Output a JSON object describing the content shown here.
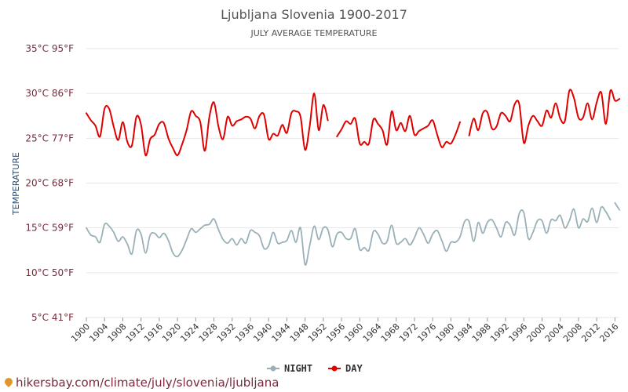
{
  "source": "hikersbay.com/climate/july/slovenia/ljubljana",
  "chart_data": {
    "type": "line",
    "title": "Ljubljana Slovenia 1900-2017",
    "subtitle": "JULY AVERAGE TEMPERATURE",
    "ylabel": "TEMPERATURE",
    "ylim": [
      5,
      35
    ],
    "xlim": [
      1900,
      2017
    ],
    "y_ticks": [
      {
        "value": 35,
        "label": "35°C 95°F"
      },
      {
        "value": 30,
        "label": "30°C 86°F"
      },
      {
        "value": 25,
        "label": "25°C 77°F"
      },
      {
        "value": 20,
        "label": "20°C 68°F"
      },
      {
        "value": 15,
        "label": "15°C 59°F"
      },
      {
        "value": 10,
        "label": "10°C 50°F"
      },
      {
        "value": 5,
        "label": "5°C 41°F"
      }
    ],
    "x_ticks": [
      1900,
      1904,
      1908,
      1912,
      1916,
      1920,
      1924,
      1928,
      1932,
      1936,
      1940,
      1944,
      1948,
      1952,
      1956,
      1960,
      1964,
      1968,
      1972,
      1976,
      1980,
      1984,
      1988,
      1992,
      1996,
      2000,
      2004,
      2008,
      2012,
      2016
    ],
    "grid": true,
    "legend_position": "bottom-center",
    "series": [
      {
        "name": "NIGHT",
        "color": "#9ab0b8",
        "segments": [
          [
            [
              1900,
              15.0
            ],
            [
              1901,
              14.2
            ],
            [
              1902,
              14.0
            ],
            [
              1903,
              13.4
            ],
            [
              1904,
              15.4
            ],
            [
              1905,
              15.2
            ],
            [
              1906,
              14.5
            ],
            [
              1907,
              13.5
            ],
            [
              1908,
              14.0
            ],
            [
              1909,
              13.2
            ],
            [
              1910,
              12.1
            ],
            [
              1911,
              14.7
            ],
            [
              1912,
              14.3
            ],
            [
              1913,
              12.2
            ],
            [
              1914,
              14.2
            ],
            [
              1915,
              14.4
            ],
            [
              1916,
              13.9
            ],
            [
              1917,
              14.4
            ],
            [
              1918,
              13.6
            ],
            [
              1919,
              12.2
            ],
            [
              1920,
              11.8
            ],
            [
              1921,
              12.5
            ],
            [
              1922,
              13.7
            ],
            [
              1923,
              14.9
            ],
            [
              1924,
              14.5
            ],
            [
              1925,
              14.9
            ],
            [
              1926,
              15.3
            ],
            [
              1927,
              15.4
            ],
            [
              1928,
              16.0
            ],
            [
              1929,
              14.8
            ],
            [
              1930,
              13.7
            ],
            [
              1931,
              13.3
            ],
            [
              1932,
              13.8
            ],
            [
              1933,
              13.1
            ],
            [
              1934,
              13.8
            ],
            [
              1935,
              13.3
            ],
            [
              1936,
              14.7
            ],
            [
              1937,
              14.5
            ],
            [
              1938,
              14.1
            ],
            [
              1939,
              12.7
            ],
            [
              1940,
              13.0
            ],
            [
              1941,
              14.5
            ],
            [
              1942,
              13.3
            ],
            [
              1943,
              13.4
            ],
            [
              1944,
              13.6
            ],
            [
              1945,
              14.7
            ],
            [
              1946,
              13.4
            ],
            [
              1947,
              15.0
            ],
            [
              1948,
              10.9
            ],
            [
              1949,
              13.0
            ],
            [
              1950,
              15.2
            ],
            [
              1951,
              13.7
            ],
            [
              1952,
              15.0
            ],
            [
              1953,
              14.8
            ],
            [
              1954,
              12.9
            ],
            [
              1955,
              14.3
            ],
            [
              1956,
              14.5
            ],
            [
              1957,
              13.8
            ],
            [
              1958,
              13.8
            ],
            [
              1959,
              14.9
            ],
            [
              1960,
              12.6
            ],
            [
              1961,
              12.8
            ],
            [
              1962,
              12.5
            ],
            [
              1963,
              14.6
            ],
            [
              1964,
              14.3
            ],
            [
              1965,
              13.3
            ],
            [
              1966,
              13.5
            ],
            [
              1967,
              15.3
            ],
            [
              1968,
              13.3
            ],
            [
              1969,
              13.4
            ],
            [
              1970,
              13.8
            ],
            [
              1971,
              13.1
            ],
            [
              1972,
              13.9
            ],
            [
              1973,
              15.0
            ],
            [
              1974,
              14.3
            ],
            [
              1975,
              13.3
            ],
            [
              1976,
              14.3
            ],
            [
              1977,
              14.7
            ],
            [
              1978,
              13.6
            ],
            [
              1979,
              12.4
            ],
            [
              1980,
              13.4
            ],
            [
              1981,
              13.4
            ],
            [
              1982,
              14.0
            ],
            [
              1983,
              15.7
            ],
            [
              1984,
              15.7
            ],
            [
              1985,
              13.5
            ],
            [
              1986,
              15.6
            ],
            [
              1987,
              14.4
            ],
            [
              1988,
              15.6
            ],
            [
              1989,
              15.9
            ],
            [
              1990,
              15.0
            ],
            [
              1991,
              14.0
            ],
            [
              1992,
              15.6
            ],
            [
              1993,
              15.3
            ],
            [
              1994,
              14.2
            ],
            [
              1995,
              16.6
            ],
            [
              1996,
              16.7
            ],
            [
              1997,
              13.8
            ],
            [
              1998,
              14.5
            ],
            [
              1999,
              15.8
            ],
            [
              2000,
              15.8
            ],
            [
              2001,
              14.4
            ],
            [
              2002,
              15.9
            ],
            [
              2003,
              15.8
            ],
            [
              2004,
              16.4
            ],
            [
              2005,
              15.0
            ],
            [
              2006,
              15.8
            ],
            [
              2007,
              17.1
            ],
            [
              2008,
              15.0
            ],
            [
              2009,
              16.0
            ],
            [
              2010,
              15.7
            ],
            [
              2011,
              17.2
            ],
            [
              2012,
              15.6
            ],
            [
              2013,
              17.3
            ],
            [
              2014,
              16.8
            ],
            [
              2015,
              15.9
            ]
          ],
          [
            [
              2016,
              17.8
            ],
            [
              2017,
              17.0
            ]
          ]
        ]
      },
      {
        "name": "DAY",
        "color": "#e00000",
        "segments": [
          [
            [
              1900,
              27.8
            ],
            [
              1901,
              27.0
            ],
            [
              1902,
              26.4
            ],
            [
              1903,
              25.2
            ],
            [
              1904,
              28.3
            ],
            [
              1905,
              28.3
            ],
            [
              1906,
              26.3
            ],
            [
              1907,
              24.8
            ],
            [
              1908,
              26.8
            ],
            [
              1909,
              24.6
            ],
            [
              1910,
              24.2
            ],
            [
              1911,
              27.4
            ],
            [
              1912,
              26.5
            ],
            [
              1913,
              23.1
            ],
            [
              1914,
              24.9
            ],
            [
              1915,
              25.4
            ],
            [
              1916,
              26.6
            ],
            [
              1917,
              26.7
            ],
            [
              1918,
              25.0
            ],
            [
              1919,
              23.9
            ],
            [
              1920,
              23.1
            ],
            [
              1921,
              24.3
            ],
            [
              1922,
              25.9
            ],
            [
              1923,
              28.0
            ],
            [
              1924,
              27.5
            ],
            [
              1925,
              26.8
            ],
            [
              1926,
              23.6
            ],
            [
              1927,
              27.4
            ],
            [
              1928,
              29.0
            ],
            [
              1929,
              26.3
            ],
            [
              1930,
              24.9
            ],
            [
              1931,
              27.4
            ],
            [
              1932,
              26.4
            ],
            [
              1933,
              26.9
            ],
            [
              1934,
              27.1
            ],
            [
              1935,
              27.4
            ],
            [
              1936,
              27.2
            ],
            [
              1937,
              26.1
            ],
            [
              1938,
              27.5
            ],
            [
              1939,
              27.6
            ],
            [
              1940,
              24.9
            ],
            [
              1941,
              25.5
            ],
            [
              1942,
              25.3
            ],
            [
              1943,
              26.5
            ],
            [
              1944,
              25.6
            ],
            [
              1945,
              27.8
            ],
            [
              1946,
              28.0
            ],
            [
              1947,
              27.4
            ],
            [
              1948,
              23.7
            ],
            [
              1949,
              26.3
            ],
            [
              1950,
              30.0
            ],
            [
              1951,
              25.9
            ],
            [
              1952,
              28.7
            ],
            [
              1953,
              27.0
            ]
          ],
          [
            [
              1955,
              25.2
            ],
            [
              1956,
              26.0
            ],
            [
              1957,
              26.9
            ],
            [
              1958,
              26.6
            ],
            [
              1959,
              27.2
            ],
            [
              1960,
              24.4
            ],
            [
              1961,
              24.6
            ],
            [
              1962,
              24.4
            ],
            [
              1963,
              27.1
            ],
            [
              1964,
              26.6
            ],
            [
              1965,
              25.9
            ],
            [
              1966,
              24.3
            ],
            [
              1967,
              28.0
            ],
            [
              1968,
              25.9
            ],
            [
              1969,
              26.7
            ],
            [
              1970,
              25.8
            ],
            [
              1971,
              27.5
            ],
            [
              1972,
              25.4
            ],
            [
              1973,
              25.8
            ],
            [
              1974,
              26.1
            ],
            [
              1975,
              26.4
            ],
            [
              1976,
              27.0
            ],
            [
              1977,
              25.4
            ],
            [
              1978,
              24.0
            ],
            [
              1979,
              24.6
            ],
            [
              1980,
              24.4
            ],
            [
              1981,
              25.4
            ],
            [
              1982,
              26.8
            ]
          ],
          [
            [
              1984,
              25.3
            ],
            [
              1985,
              27.2
            ],
            [
              1986,
              25.9
            ],
            [
              1987,
              27.8
            ],
            [
              1988,
              27.9
            ],
            [
              1989,
              26.1
            ],
            [
              1990,
              26.3
            ],
            [
              1991,
              27.8
            ],
            [
              1992,
              27.5
            ],
            [
              1993,
              26.9
            ],
            [
              1994,
              28.8
            ],
            [
              1995,
              28.8
            ],
            [
              1996,
              24.5
            ],
            [
              1997,
              26.4
            ],
            [
              1998,
              27.5
            ],
            [
              1999,
              26.9
            ],
            [
              2000,
              26.4
            ],
            [
              2001,
              28.1
            ],
            [
              2002,
              27.3
            ],
            [
              2003,
              28.9
            ],
            [
              2004,
              27.2
            ],
            [
              2005,
              26.9
            ],
            [
              2006,
              30.3
            ],
            [
              2007,
              29.5
            ],
            [
              2008,
              27.3
            ],
            [
              2009,
              27.3
            ],
            [
              2010,
              28.9
            ],
            [
              2011,
              27.1
            ],
            [
              2012,
              29.0
            ],
            [
              2013,
              30.1
            ],
            [
              2014,
              26.6
            ],
            [
              2015,
              30.3
            ],
            [
              2016,
              29.2
            ],
            [
              2017,
              29.4
            ]
          ]
        ]
      }
    ]
  }
}
